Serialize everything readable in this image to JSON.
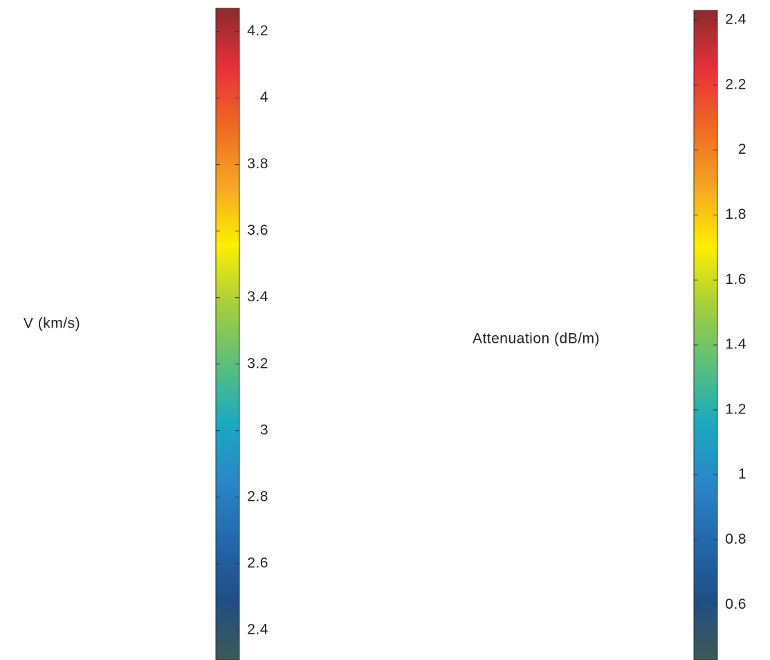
{
  "chart_data": [
    {
      "type": "colorbar",
      "label": "V (km/s)",
      "ylim": [
        2.31,
        4.27
      ],
      "yticks": [
        2.4,
        2.6,
        2.8,
        3,
        3.2,
        3.4,
        3.6,
        3.8,
        4,
        4.2
      ],
      "colors": [
        "#3d5a58",
        "#1f4e86",
        "#2268ac",
        "#2a86c8",
        "#1aaac0",
        "#5cbf7a",
        "#a6cf3a",
        "#ffee00",
        "#f6a623",
        "#ef6a22",
        "#e8303a",
        "#8a2c2c"
      ]
    },
    {
      "type": "colorbar",
      "label": "Attenuation (dB/m)",
      "ylim": [
        0.43,
        2.43
      ],
      "yticks": [
        0.6,
        0.8,
        1,
        1.2,
        1.4,
        1.6,
        1.8,
        2,
        2.2,
        2.4
      ],
      "colors": [
        "#3d5a58",
        "#1f4e86",
        "#2268ac",
        "#2a86c8",
        "#1aaac0",
        "#5cbf7a",
        "#a6cf3a",
        "#ffee00",
        "#f6a623",
        "#ef6a22",
        "#e8303a",
        "#8a2c2c"
      ]
    }
  ]
}
